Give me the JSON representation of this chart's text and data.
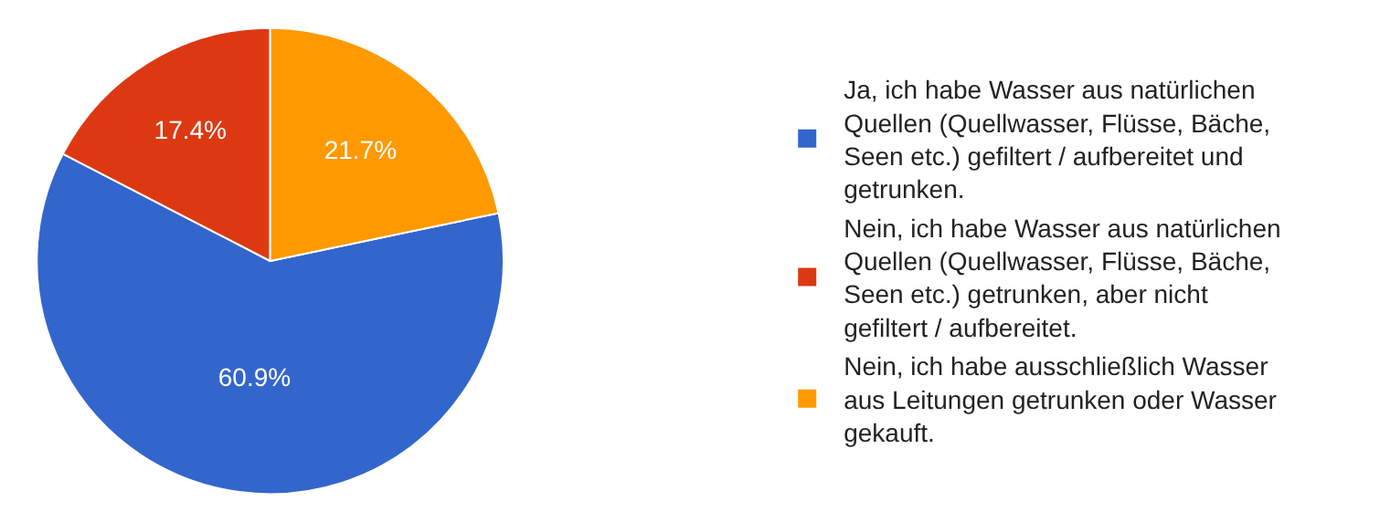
{
  "chart_data": {
    "type": "pie",
    "categories": [
      "Ja, ich habe Wasser aus natürlichen Quellen (Quellwasser, Flüsse, Bäche, Seen etc.) gefiltert / aufbereitet und getrunken.",
      "Nein, ich habe Wasser aus natürlichen Quellen (Quellwasser, Flüsse, Bäche, Seen etc.) getrunken, aber nicht gefiltert / aufbereitet.",
      "Nein, ich habe ausschließlich Wasser aus Leitungen getrunken oder Wasser gekauft."
    ],
    "values": [
      60.9,
      17.4,
      21.7
    ],
    "colors": [
      "#3366cc",
      "#dc3912",
      "#ff9900"
    ],
    "value_labels": [
      "60.9%",
      "17.4%",
      "21.7%"
    ],
    "legend": "right"
  }
}
